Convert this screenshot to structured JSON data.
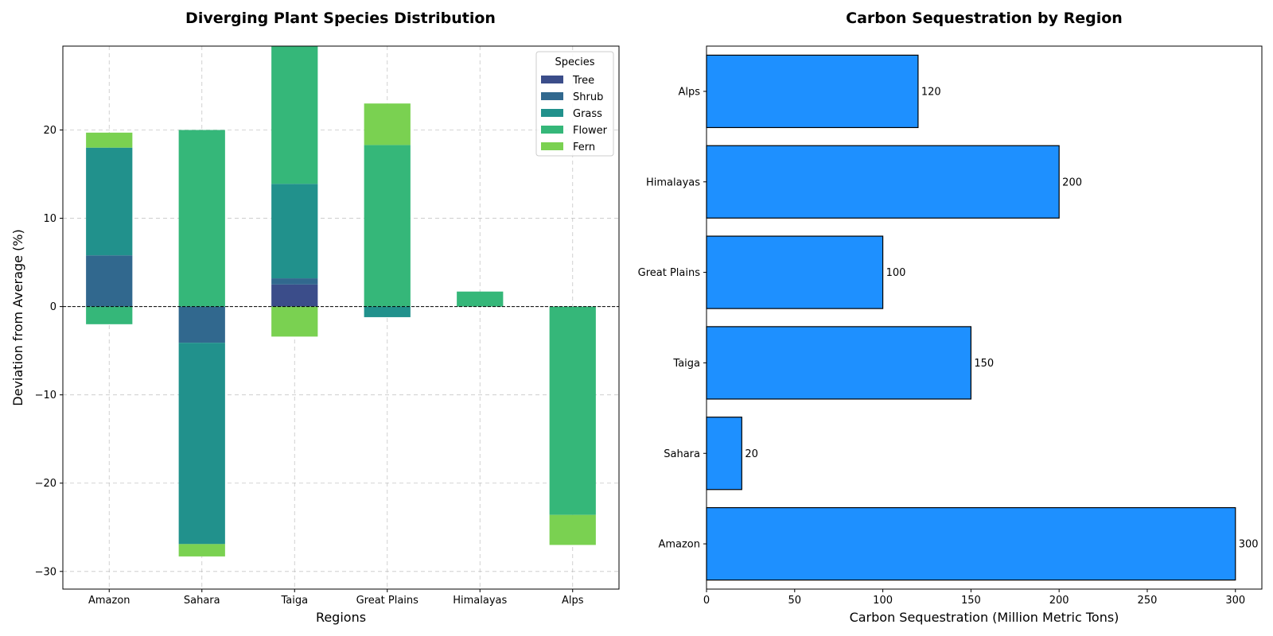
{
  "chart_data": [
    {
      "type": "bar",
      "stacked": "diverging",
      "title": "Diverging Plant Species Distribution",
      "xlabel": "Regions",
      "ylabel": "Deviation from Average (%)",
      "categories": [
        "Amazon",
        "Sahara",
        "Taiga",
        "Great Plains",
        "Himalayas",
        "Alps"
      ],
      "ylim": [
        -32,
        29.5
      ],
      "yticks": [
        -30,
        -20,
        -10,
        0,
        10,
        20
      ],
      "ytick_labels": [
        "−30",
        "−20",
        "−10",
        "0",
        "10",
        "20"
      ],
      "grid": true,
      "zero_line": "dashed",
      "legend": {
        "title": "Species",
        "position": "upper-right"
      },
      "series": [
        {
          "name": "Tree",
          "color": "#3b4d8a",
          "values": [
            0,
            0,
            2.5,
            0,
            0,
            0
          ]
        },
        {
          "name": "Shrub",
          "color": "#31688e",
          "values": [
            5.8,
            -4.1,
            0.7,
            0,
            0,
            0
          ]
        },
        {
          "name": "Grass",
          "color": "#21918c",
          "values": [
            12.2,
            -22.8,
            10.7,
            -1.2,
            0,
            0
          ]
        },
        {
          "name": "Flower",
          "color": "#35b779",
          "values": [
            -2.0,
            20.0,
            18.0,
            18.3,
            1.7,
            -23.6
          ]
        },
        {
          "name": "Fern",
          "color": "#7ad151",
          "values": [
            1.7,
            -1.4,
            -3.4,
            4.7,
            0,
            -3.4
          ]
        }
      ]
    },
    {
      "type": "bar",
      "orientation": "horizontal",
      "title": "Carbon Sequestration by Region",
      "xlabel": "Carbon Sequestration (Million Metric Tons)",
      "ylabel": "",
      "categories": [
        "Amazon",
        "Sahara",
        "Taiga",
        "Great Plains",
        "Himalayas",
        "Alps"
      ],
      "values": [
        300,
        20,
        150,
        100,
        200,
        120
      ],
      "data_labels": [
        "300",
        "20",
        "150",
        "100",
        "200",
        "120"
      ],
      "xlim": [
        0,
        315
      ],
      "xticks": [
        0,
        50,
        100,
        150,
        200,
        250,
        300
      ],
      "xtick_labels": [
        "0",
        "50",
        "100",
        "150",
        "200",
        "250",
        "300"
      ],
      "color": "#1e90ff",
      "edgecolor": "#000000",
      "grid": false
    }
  ]
}
